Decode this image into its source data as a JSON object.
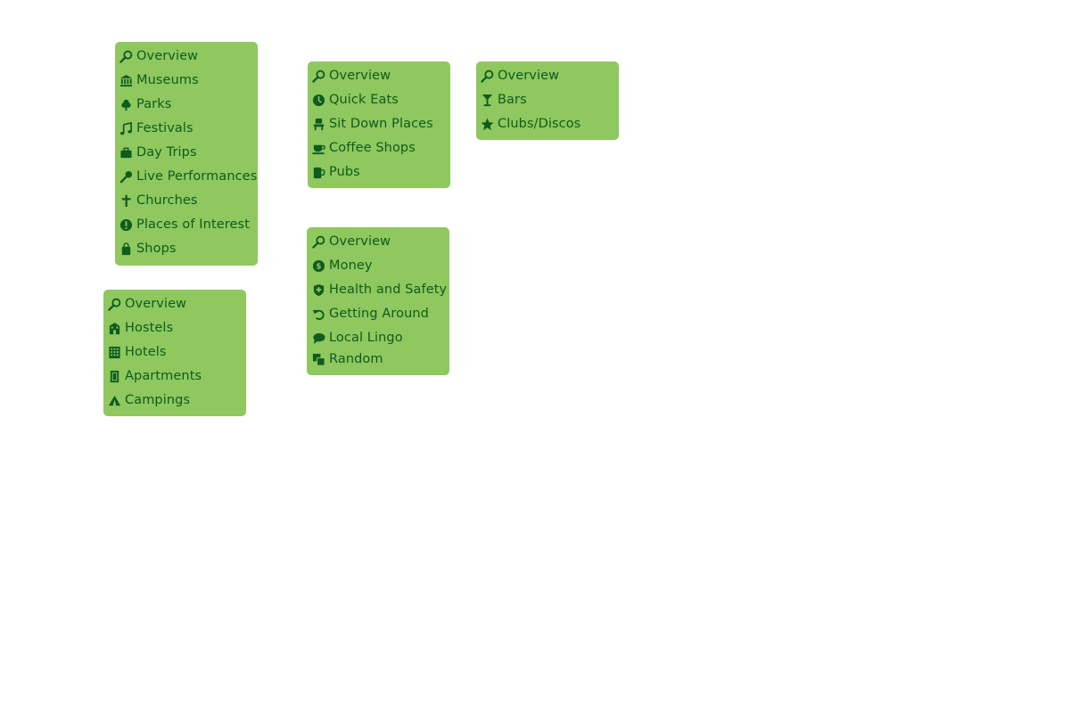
{
  "menus": {
    "sights": {
      "items": [
        {
          "label": "Overview",
          "icon": "magnifier-icon"
        },
        {
          "label": "Museums",
          "icon": "museum-icon"
        },
        {
          "label": "Parks",
          "icon": "tree-icon"
        },
        {
          "label": "Festivals",
          "icon": "music-note-icon"
        },
        {
          "label": "Day Trips",
          "icon": "briefcase-icon"
        },
        {
          "label": "Live Performances",
          "icon": "microphone-icon"
        },
        {
          "label": "Churches",
          "icon": "cross-icon"
        },
        {
          "label": "Places of Interest",
          "icon": "exclamation-icon"
        },
        {
          "label": "Shops",
          "icon": "shopping-bag-icon"
        }
      ]
    },
    "accommodation": {
      "items": [
        {
          "label": "Overview",
          "icon": "magnifier-icon"
        },
        {
          "label": "Hostels",
          "icon": "hostel-building-icon"
        },
        {
          "label": "Hotels",
          "icon": "hotel-building-icon"
        },
        {
          "label": "Apartments",
          "icon": "apartment-door-icon"
        },
        {
          "label": "Campings",
          "icon": "tent-icon"
        }
      ]
    },
    "food": {
      "items": [
        {
          "label": "Overview",
          "icon": "magnifier-icon"
        },
        {
          "label": "Quick Eats",
          "icon": "clock-icon"
        },
        {
          "label": "Sit Down Places",
          "icon": "chair-icon"
        },
        {
          "label": "Coffee Shops",
          "icon": "coffee-cup-icon"
        },
        {
          "label": "Pubs",
          "icon": "beer-mug-icon"
        }
      ]
    },
    "practical": {
      "items": [
        {
          "label": "Overview",
          "icon": "magnifier-icon"
        },
        {
          "label": "Money",
          "icon": "dollar-coin-icon"
        },
        {
          "label": "Health and Safety",
          "icon": "shield-plus-icon"
        },
        {
          "label": "Getting Around",
          "icon": "undo-arrow-icon"
        },
        {
          "label": "Local Lingo",
          "icon": "speech-bubble-icon"
        },
        {
          "label": "Random",
          "icon": "overlapping-squares-icon"
        }
      ]
    },
    "nightlife": {
      "items": [
        {
          "label": "Overview",
          "icon": "magnifier-icon"
        },
        {
          "label": "Bars",
          "icon": "cocktail-glass-icon"
        },
        {
          "label": "Clubs/Discos",
          "icon": "star-icon"
        }
      ]
    }
  },
  "colors": {
    "menu_background": "#8ec85e",
    "text": "#0e5c1e",
    "page_background": "#ffffff"
  }
}
